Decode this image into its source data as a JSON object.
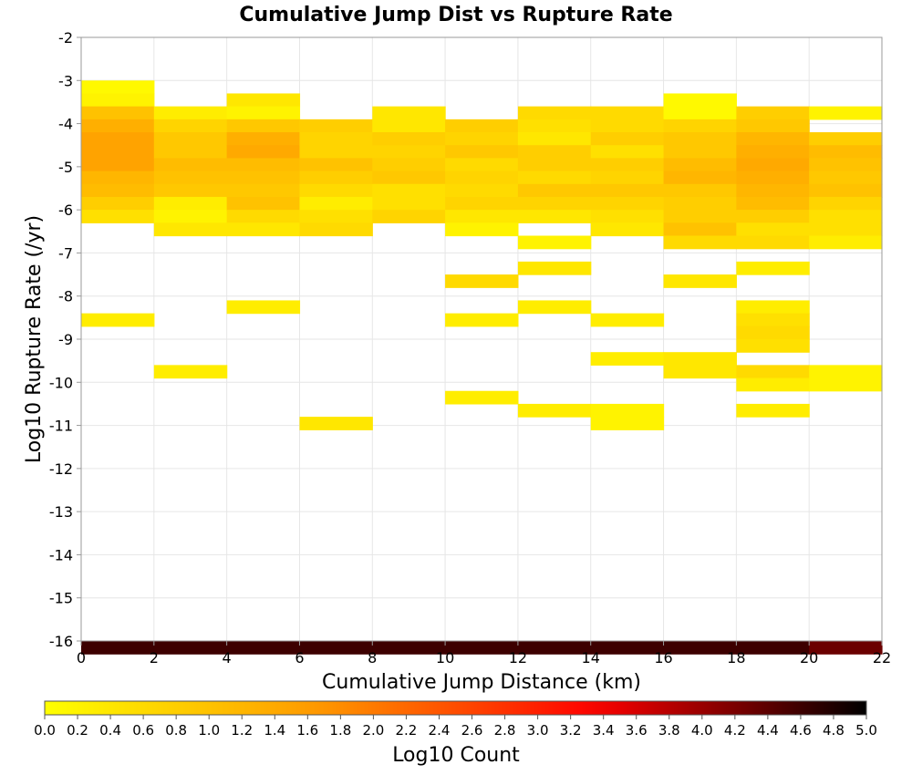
{
  "chart_data": {
    "type": "heatmap",
    "title": "Cumulative Jump Dist vs Rupture Rate",
    "xlabel": "Cumulative Jump Distance (km)",
    "ylabel": "Log10 Rupture Rate (/yr)",
    "xlim": [
      0,
      22
    ],
    "ylim": [
      -16,
      -2
    ],
    "x_bin_width": 2,
    "y_bin_height": 0.3,
    "x_ticks": [
      "0",
      "2",
      "4",
      "6",
      "8",
      "10",
      "12",
      "14",
      "16",
      "18",
      "20",
      "22"
    ],
    "y_ticks": [
      "-2",
      "-3",
      "-4",
      "-5",
      "-6",
      "-7",
      "-8",
      "-9",
      "-10",
      "-11",
      "-12",
      "-13",
      "-14",
      "-15",
      "-16"
    ],
    "grid": true,
    "colorbar": {
      "label": "Log10 Count",
      "range": [
        0,
        5
      ],
      "ticks": [
        "0.0",
        "0.2",
        "0.4",
        "0.6",
        "0.8",
        "1.0",
        "1.2",
        "1.4",
        "1.6",
        "1.8",
        "2.0",
        "2.2",
        "2.4",
        "2.6",
        "2.8",
        "3.0",
        "3.2",
        "3.4",
        "3.6",
        "3.8",
        "4.0",
        "4.2",
        "4.4",
        "4.6",
        "4.8",
        "5.0"
      ],
      "colors": [
        "#ffff00",
        "#ff9900",
        "#ff0000",
        "#000000"
      ]
    },
    "cells": [
      [
        0,
        -3.0,
        0.1
      ],
      [
        0,
        -3.3,
        0.2
      ],
      [
        0,
        -3.6,
        1.0
      ],
      [
        0,
        -3.9,
        1.3
      ],
      [
        0,
        -4.2,
        1.5
      ],
      [
        0,
        -4.5,
        1.5
      ],
      [
        0,
        -4.8,
        1.5
      ],
      [
        0,
        -5.1,
        1.2
      ],
      [
        0,
        -5.4,
        1.1
      ],
      [
        0,
        -5.7,
        0.8
      ],
      [
        0,
        -6.0,
        0.5
      ],
      [
        0,
        -8.4,
        0.3
      ],
      [
        2,
        -3.6,
        0.3
      ],
      [
        2,
        -3.9,
        0.7
      ],
      [
        2,
        -4.2,
        0.9
      ],
      [
        2,
        -4.5,
        0.9
      ],
      [
        2,
        -4.8,
        1.1
      ],
      [
        2,
        -5.1,
        1.0
      ],
      [
        2,
        -5.4,
        0.9
      ],
      [
        2,
        -5.7,
        0.3
      ],
      [
        2,
        -6.0,
        0.2
      ],
      [
        2,
        -6.3,
        0.4
      ],
      [
        2,
        -9.6,
        0.3
      ],
      [
        4,
        -3.3,
        0.4
      ],
      [
        4,
        -3.6,
        0.2
      ],
      [
        4,
        -3.9,
        0.9
      ],
      [
        4,
        -4.2,
        1.3
      ],
      [
        4,
        -4.5,
        1.4
      ],
      [
        4,
        -4.8,
        1.1
      ],
      [
        4,
        -5.1,
        1.0
      ],
      [
        4,
        -5.4,
        0.9
      ],
      [
        4,
        -5.7,
        1.0
      ],
      [
        4,
        -6.0,
        0.6
      ],
      [
        4,
        -6.3,
        0.4
      ],
      [
        4,
        -8.1,
        0.3
      ],
      [
        6,
        -3.9,
        0.8
      ],
      [
        6,
        -4.2,
        0.7
      ],
      [
        6,
        -4.5,
        0.7
      ],
      [
        6,
        -4.8,
        1.0
      ],
      [
        6,
        -5.1,
        0.8
      ],
      [
        6,
        -5.4,
        0.6
      ],
      [
        6,
        -5.7,
        0.3
      ],
      [
        6,
        -6.0,
        0.5
      ],
      [
        6,
        -6.3,
        0.6
      ],
      [
        6,
        -10.8,
        0.4
      ],
      [
        8,
        -3.6,
        0.4
      ],
      [
        8,
        -3.9,
        0.4
      ],
      [
        8,
        -4.2,
        0.8
      ],
      [
        8,
        -4.5,
        0.7
      ],
      [
        8,
        -4.8,
        0.8
      ],
      [
        8,
        -5.1,
        0.9
      ],
      [
        8,
        -5.4,
        0.5
      ],
      [
        8,
        -5.7,
        0.5
      ],
      [
        8,
        -6.0,
        0.7
      ],
      [
        10,
        -3.9,
        0.8
      ],
      [
        10,
        -4.2,
        0.7
      ],
      [
        10,
        -4.5,
        0.9
      ],
      [
        10,
        -4.8,
        0.6
      ],
      [
        10,
        -5.1,
        0.7
      ],
      [
        10,
        -5.4,
        0.6
      ],
      [
        10,
        -5.7,
        0.7
      ],
      [
        10,
        -6.0,
        0.4
      ],
      [
        10,
        -6.3,
        0.2
      ],
      [
        10,
        -7.5,
        0.6
      ],
      [
        10,
        -8.4,
        0.3
      ],
      [
        10,
        -10.2,
        0.3
      ],
      [
        12,
        -3.6,
        0.6
      ],
      [
        12,
        -3.9,
        0.5
      ],
      [
        12,
        -4.2,
        0.4
      ],
      [
        12,
        -4.5,
        0.8
      ],
      [
        12,
        -4.8,
        0.8
      ],
      [
        12,
        -5.1,
        0.6
      ],
      [
        12,
        -5.4,
        0.9
      ],
      [
        12,
        -5.7,
        0.7
      ],
      [
        12,
        -6.0,
        0.4
      ],
      [
        12,
        -6.6,
        0.2
      ],
      [
        12,
        -7.2,
        0.4
      ],
      [
        12,
        -8.1,
        0.3
      ],
      [
        12,
        -10.5,
        0.3
      ],
      [
        14,
        -3.6,
        0.6
      ],
      [
        14,
        -3.9,
        0.6
      ],
      [
        14,
        -4.2,
        0.8
      ],
      [
        14,
        -4.5,
        0.5
      ],
      [
        14,
        -4.8,
        0.8
      ],
      [
        14,
        -5.1,
        0.7
      ],
      [
        14,
        -5.4,
        0.9
      ],
      [
        14,
        -5.7,
        0.7
      ],
      [
        14,
        -6.0,
        0.5
      ],
      [
        14,
        -6.3,
        0.4
      ],
      [
        14,
        -8.4,
        0.3
      ],
      [
        14,
        -9.3,
        0.3
      ],
      [
        14,
        -10.5,
        0.2
      ],
      [
        14,
        -10.8,
        0.2
      ],
      [
        16,
        -3.3,
        0.1
      ],
      [
        16,
        -3.6,
        0.1
      ],
      [
        16,
        -3.9,
        0.7
      ],
      [
        16,
        -4.2,
        0.9
      ],
      [
        16,
        -4.5,
        0.9
      ],
      [
        16,
        -4.8,
        1.1
      ],
      [
        16,
        -5.1,
        1.2
      ],
      [
        16,
        -5.4,
        0.9
      ],
      [
        16,
        -5.7,
        0.8
      ],
      [
        16,
        -6.0,
        0.8
      ],
      [
        16,
        -6.3,
        1.0
      ],
      [
        16,
        -6.6,
        0.6
      ],
      [
        16,
        -7.5,
        0.4
      ],
      [
        16,
        -9.3,
        0.4
      ],
      [
        16,
        -9.6,
        0.4
      ],
      [
        18,
        -3.6,
        0.8
      ],
      [
        18,
        -3.9,
        0.9
      ],
      [
        18,
        -4.2,
        1.2
      ],
      [
        18,
        -4.5,
        1.3
      ],
      [
        18,
        -4.8,
        1.4
      ],
      [
        18,
        -5.1,
        1.3
      ],
      [
        18,
        -5.4,
        1.2
      ],
      [
        18,
        -5.7,
        1.1
      ],
      [
        18,
        -6.0,
        0.8
      ],
      [
        18,
        -6.3,
        0.5
      ],
      [
        18,
        -6.6,
        0.6
      ],
      [
        18,
        -7.2,
        0.3
      ],
      [
        18,
        -8.1,
        0.3
      ],
      [
        18,
        -8.4,
        0.5
      ],
      [
        18,
        -8.7,
        0.6
      ],
      [
        18,
        -9.0,
        0.5
      ],
      [
        18,
        -9.6,
        0.6
      ],
      [
        18,
        -9.9,
        0.3
      ],
      [
        18,
        -10.5,
        0.3
      ],
      [
        20,
        -3.6,
        0.2
      ],
      [
        20,
        -4.2,
        0.8
      ],
      [
        20,
        -4.5,
        1.1
      ],
      [
        20,
        -4.8,
        1.0
      ],
      [
        20,
        -5.1,
        0.9
      ],
      [
        20,
        -5.4,
        1.0
      ],
      [
        20,
        -5.7,
        0.7
      ],
      [
        20,
        -6.0,
        0.5
      ],
      [
        20,
        -6.3,
        0.5
      ],
      [
        20,
        -6.6,
        0.3
      ],
      [
        20,
        -9.6,
        0.2
      ],
      [
        20,
        -9.9,
        0.2
      ],
      [
        0,
        -16.0,
        4.6
      ],
      [
        2,
        -16.0,
        4.6
      ],
      [
        4,
        -16.0,
        4.6
      ],
      [
        6,
        -16.0,
        4.6
      ],
      [
        8,
        -16.0,
        4.6
      ],
      [
        10,
        -16.0,
        4.6
      ],
      [
        12,
        -16.0,
        4.6
      ],
      [
        14,
        -16.0,
        4.6
      ],
      [
        16,
        -16.0,
        4.6
      ],
      [
        18,
        -16.0,
        4.6
      ],
      [
        20,
        -16.0,
        4.3
      ]
    ]
  }
}
